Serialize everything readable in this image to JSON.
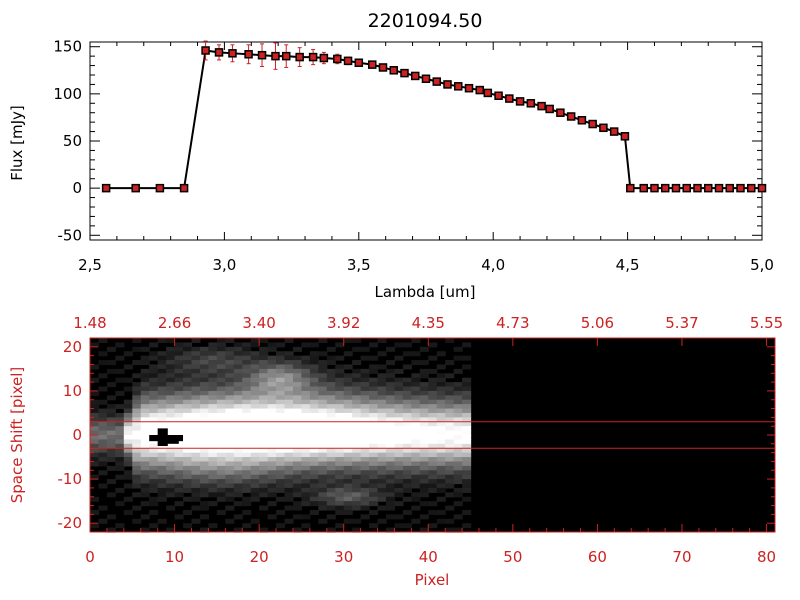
{
  "chart_data": [
    {
      "type": "line",
      "title": "2201094.50",
      "xlabel": "Lambda [um]",
      "ylabel": "Flux [mJy]",
      "xlim": [
        2.5,
        5.0
      ],
      "ylim": [
        -55,
        155
      ],
      "x_ticks": [
        "2.5",
        "3.0",
        "3.5",
        "4.0",
        "4.5",
        "5.0"
      ],
      "y_ticks": [
        "-50",
        "0",
        "50",
        "100",
        "150"
      ],
      "marker_color": "#cc2222",
      "line_color": "#000000",
      "series": [
        {
          "x": [
            2.56,
            2.67,
            2.76,
            2.85,
            2.93,
            2.98,
            3.03,
            3.09,
            3.14,
            3.19,
            3.23,
            3.28,
            3.33,
            3.37,
            3.42,
            3.46,
            3.5,
            3.55,
            3.59,
            3.63,
            3.67,
            3.71,
            3.75,
            3.79,
            3.83,
            3.87,
            3.91,
            3.95,
            3.98,
            4.02,
            4.06,
            4.1,
            4.14,
            4.18,
            4.21,
            4.25,
            4.29,
            4.33,
            4.37,
            4.41,
            4.45,
            4.49,
            4.51,
            4.56,
            4.6,
            4.64,
            4.68,
            4.72,
            4.76,
            4.8,
            4.84,
            4.88,
            4.92,
            4.96,
            5.0
          ],
          "y": [
            0,
            0,
            0,
            0,
            146,
            144,
            143,
            142,
            141,
            140,
            140,
            139,
            139,
            138,
            137,
            135,
            133,
            131,
            128,
            125,
            122,
            119,
            116,
            113,
            110,
            108,
            106,
            104,
            101,
            98,
            95,
            92,
            90,
            87,
            84,
            80,
            76,
            72,
            68,
            64,
            60,
            55,
            0,
            0,
            0,
            0,
            0,
            0,
            0,
            0,
            0,
            0,
            0,
            0,
            0
          ],
          "error": [
            0,
            0,
            0,
            0,
            10,
            8,
            9,
            10,
            12,
            14,
            12,
            10,
            8,
            6,
            5,
            4,
            3,
            3,
            3,
            3,
            3,
            3,
            3,
            3,
            3,
            3,
            3,
            3,
            3,
            3,
            3,
            3,
            3,
            3,
            3,
            3,
            3,
            3,
            3,
            3,
            3,
            3,
            0,
            0,
            0,
            0,
            0,
            0,
            0,
            0,
            0,
            0,
            0,
            0,
            0
          ]
        }
      ]
    },
    {
      "type": "heatmap",
      "xlabel": "Pixel",
      "ylabel": "Space Shift [pixel]",
      "xlim": [
        0,
        81
      ],
      "ylim": [
        -22,
        22
      ],
      "x_ticks": [
        "0",
        "10",
        "20",
        "30",
        "40",
        "50",
        "60",
        "70",
        "80"
      ],
      "y_ticks": [
        "-20",
        "-10",
        "0",
        "10",
        "20"
      ],
      "top_ticks": [
        "1.48",
        "2.66",
        "3.40",
        "3.92",
        "4.35",
        "4.73",
        "5.06",
        "5.37",
        "5.55"
      ],
      "extraction_lines": [
        3,
        -3
      ],
      "line_color": "#cc2222",
      "data_extent_pixel": 45
    }
  ]
}
